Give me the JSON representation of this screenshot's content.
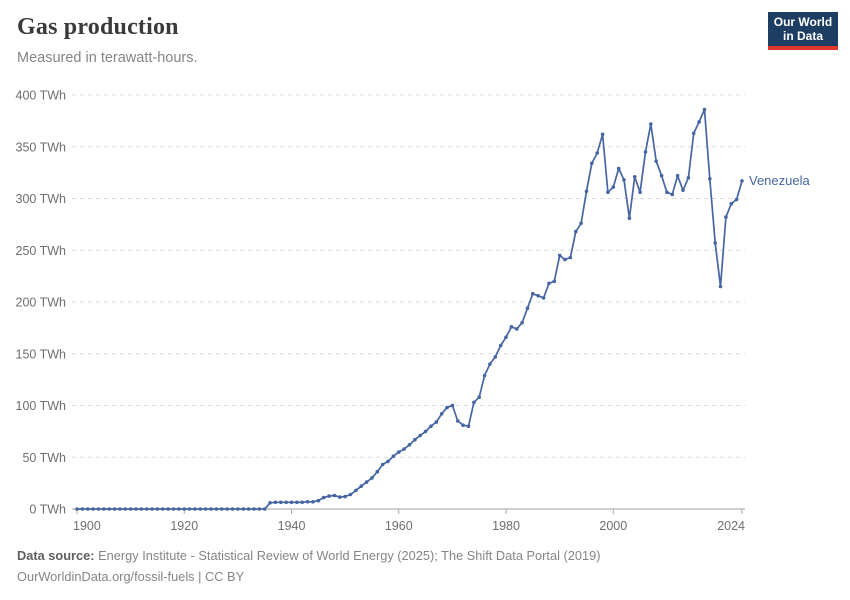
{
  "header": {
    "title": "Gas production",
    "subtitle": "Measured in terawatt-hours.",
    "logo": {
      "line1": "Our World",
      "line2": "in Data",
      "bg_color": "#1d3d63",
      "accent_color": "#e0372b"
    }
  },
  "chart_data": {
    "type": "line",
    "title": "Gas production",
    "unit": "TWh",
    "xlabel": "",
    "ylabel": "",
    "xlim": [
      1900,
      2024
    ],
    "ylim": [
      0,
      400
    ],
    "x_ticks": [
      1900,
      1920,
      1940,
      1960,
      1980,
      2000,
      2024
    ],
    "y_ticks": [
      0,
      50,
      100,
      150,
      200,
      250,
      300,
      350,
      400
    ],
    "y_tick_suffix": " TWh",
    "grid": "horizontal-dashed",
    "legend_position": "end-of-line",
    "line_color": "#4665a2",
    "marker": "circle",
    "series": [
      {
        "name": "Venezuela",
        "color": "#4665a2",
        "points": [
          [
            1900,
            0
          ],
          [
            1901,
            0
          ],
          [
            1902,
            0
          ],
          [
            1903,
            0
          ],
          [
            1904,
            0
          ],
          [
            1905,
            0
          ],
          [
            1906,
            0
          ],
          [
            1907,
            0
          ],
          [
            1908,
            0
          ],
          [
            1909,
            0
          ],
          [
            1910,
            0
          ],
          [
            1911,
            0
          ],
          [
            1912,
            0
          ],
          [
            1913,
            0
          ],
          [
            1914,
            0
          ],
          [
            1915,
            0
          ],
          [
            1916,
            0
          ],
          [
            1917,
            0
          ],
          [
            1918,
            0
          ],
          [
            1919,
            0
          ],
          [
            1920,
            0
          ],
          [
            1921,
            0
          ],
          [
            1922,
            0
          ],
          [
            1923,
            0
          ],
          [
            1924,
            0
          ],
          [
            1925,
            0
          ],
          [
            1926,
            0
          ],
          [
            1927,
            0
          ],
          [
            1928,
            0
          ],
          [
            1929,
            0
          ],
          [
            1930,
            0
          ],
          [
            1931,
            0
          ],
          [
            1932,
            0
          ],
          [
            1933,
            0
          ],
          [
            1934,
            0
          ],
          [
            1935,
            0
          ],
          [
            1936,
            6
          ],
          [
            1937,
            6.5
          ],
          [
            1938,
            6.5
          ],
          [
            1939,
            6.5
          ],
          [
            1940,
            6.5
          ],
          [
            1941,
            6.5
          ],
          [
            1942,
            6.5
          ],
          [
            1943,
            7
          ],
          [
            1944,
            7
          ],
          [
            1945,
            8
          ],
          [
            1946,
            11
          ],
          [
            1947,
            12.5
          ],
          [
            1948,
            13
          ],
          [
            1949,
            11.5
          ],
          [
            1950,
            12
          ],
          [
            1951,
            14
          ],
          [
            1952,
            18
          ],
          [
            1953,
            22
          ],
          [
            1954,
            26
          ],
          [
            1955,
            30
          ],
          [
            1956,
            36
          ],
          [
            1957,
            43
          ],
          [
            1958,
            46
          ],
          [
            1959,
            51
          ],
          [
            1960,
            55
          ],
          [
            1961,
            58
          ],
          [
            1962,
            62
          ],
          [
            1963,
            67
          ],
          [
            1964,
            71
          ],
          [
            1965,
            75
          ],
          [
            1966,
            80
          ],
          [
            1967,
            84
          ],
          [
            1968,
            92
          ],
          [
            1969,
            98
          ],
          [
            1970,
            100
          ],
          [
            1971,
            85
          ],
          [
            1972,
            81
          ],
          [
            1973,
            80
          ],
          [
            1974,
            103
          ],
          [
            1975,
            108
          ],
          [
            1976,
            129
          ],
          [
            1977,
            140
          ],
          [
            1978,
            147
          ],
          [
            1979,
            158
          ],
          [
            1980,
            166
          ],
          [
            1981,
            176
          ],
          [
            1982,
            174
          ],
          [
            1983,
            180
          ],
          [
            1984,
            194
          ],
          [
            1985,
            208
          ],
          [
            1986,
            206
          ],
          [
            1987,
            204
          ],
          [
            1988,
            218
          ],
          [
            1989,
            220
          ],
          [
            1990,
            245
          ],
          [
            1991,
            241
          ],
          [
            1992,
            243
          ],
          [
            1993,
            268
          ],
          [
            1994,
            276
          ],
          [
            1995,
            307
          ],
          [
            1996,
            334
          ],
          [
            1997,
            344
          ],
          [
            1998,
            362
          ],
          [
            1999,
            306
          ],
          [
            2000,
            311
          ],
          [
            2001,
            329
          ],
          [
            2002,
            318
          ],
          [
            2003,
            281
          ],
          [
            2004,
            321
          ],
          [
            2005,
            306
          ],
          [
            2006,
            345
          ],
          [
            2007,
            372
          ],
          [
            2008,
            336
          ],
          [
            2009,
            322
          ],
          [
            2010,
            306
          ],
          [
            2011,
            304
          ],
          [
            2012,
            322
          ],
          [
            2013,
            308
          ],
          [
            2014,
            320
          ],
          [
            2015,
            363
          ],
          [
            2016,
            374
          ],
          [
            2017,
            386
          ],
          [
            2018,
            319
          ],
          [
            2019,
            257
          ],
          [
            2020,
            215
          ],
          [
            2021,
            282
          ],
          [
            2022,
            295
          ],
          [
            2023,
            299
          ],
          [
            2024,
            317
          ]
        ]
      }
    ]
  },
  "footer": {
    "source_label": "Data source:",
    "source_text": " Energy Institute - Statistical Review of World Energy (2025); The Shift Data Portal (2019)",
    "link_line": "OurWorldinData.org/fossil-fuels | CC BY"
  }
}
